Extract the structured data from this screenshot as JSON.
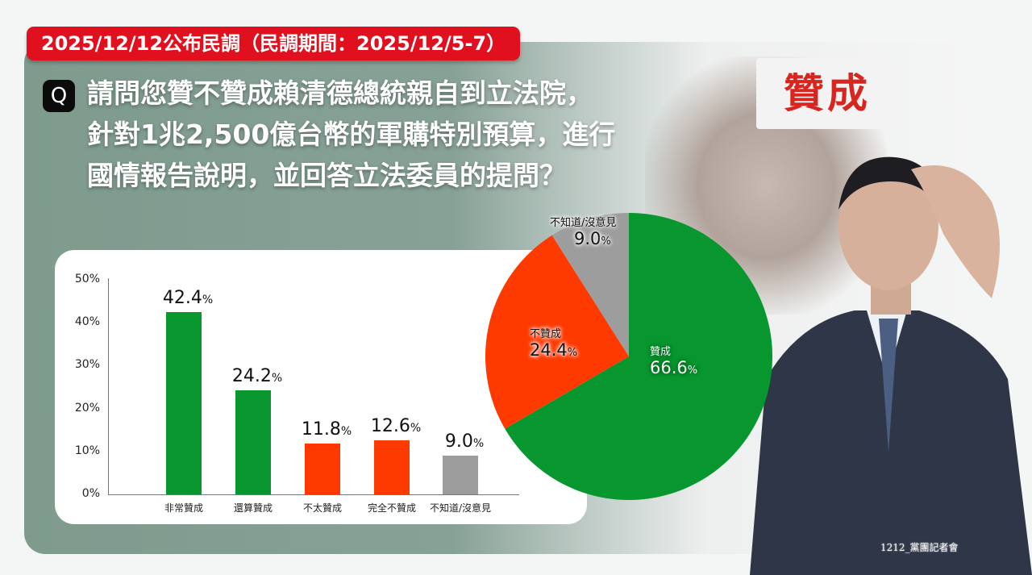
{
  "header": {
    "banner": "2025/12/12公布民調（民調期間：2025/12/5-7）"
  },
  "question": {
    "badge": "Q",
    "lines": [
      "請問您贊不贊成賴清德總統親自到立法院，",
      "針對1兆2,500億台幣的軍購特別預算，進行",
      "國情報告說明，並回答立法委員的提問？"
    ]
  },
  "photo": {
    "sign_text": "贊成",
    "watermark": "1212_黨團記者會"
  },
  "colors": {
    "support": "#07972e",
    "oppose": "#ff3a00",
    "neutral": "#9d9d9d",
    "banner": "#e0101e"
  },
  "chart_data": [
    {
      "type": "bar",
      "title": "",
      "categories": [
        "非常贊成",
        "還算贊成",
        "不太贊成",
        "完全不贊成",
        "不知道/沒意見"
      ],
      "values": [
        42.4,
        24.2,
        11.8,
        12.6,
        9.0
      ],
      "value_labels": [
        "42.4",
        "24.2",
        "11.8",
        "12.6",
        "9.0"
      ],
      "percent_sign": "%",
      "colors": [
        "#07972e",
        "#07972e",
        "#ff3a00",
        "#ff3a00",
        "#9d9d9d"
      ],
      "ylim": [
        0,
        50
      ],
      "yticks": [
        "0%",
        "10%",
        "20%",
        "30%",
        "40%",
        "50%"
      ],
      "xlabel": "",
      "ylabel": "",
      "grid": false,
      "legend": "none"
    },
    {
      "type": "pie",
      "categories": [
        "贊成",
        "不贊成",
        "不知道/沒意見"
      ],
      "values": [
        66.6,
        24.4,
        9.0
      ],
      "value_labels": [
        "66.6",
        "24.4",
        "9.0"
      ],
      "percent_sign": "%",
      "colors": [
        "#07972e",
        "#ff3a00",
        "#9d9d9d"
      ],
      "start_angle": "12 o'clock, clockwise",
      "legend": "inline labels"
    }
  ]
}
